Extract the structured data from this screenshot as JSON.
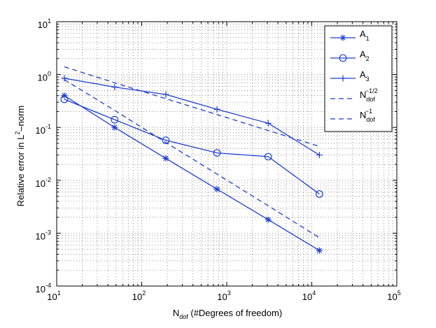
{
  "chart_data": {
    "type": "line",
    "xscale": "log",
    "yscale": "log",
    "xlim": [
      10,
      100000
    ],
    "ylim": [
      0.0001,
      10
    ],
    "grid": true,
    "legend_position": "top-right",
    "xlabel": {
      "main": "N",
      "sub": "dof",
      "rest": " (#Degrees of freedom)"
    },
    "ylabel": {
      "main": "Relative error in L",
      "sup": "2",
      "rest": "–norm"
    },
    "x_ticks": [
      {
        "base": "10",
        "exp": "1",
        "value": 10
      },
      {
        "base": "10",
        "exp": "2",
        "value": 100
      },
      {
        "base": "10",
        "exp": "3",
        "value": 1000
      },
      {
        "base": "10",
        "exp": "4",
        "value": 10000
      },
      {
        "base": "10",
        "exp": "5",
        "value": 100000
      }
    ],
    "y_ticks": [
      {
        "base": "10",
        "exp": "-4",
        "value": 0.0001
      },
      {
        "base": "10",
        "exp": "-3",
        "value": 0.001
      },
      {
        "base": "10",
        "exp": "-2",
        "value": 0.01
      },
      {
        "base": "10",
        "exp": "-1",
        "value": 0.1
      },
      {
        "base": "10",
        "exp": "0",
        "value": 1
      },
      {
        "base": "10",
        "exp": "1",
        "value": 10
      }
    ],
    "series": [
      {
        "name": "A_1",
        "label_main": "A",
        "label_sub": "1",
        "marker": "star",
        "style": "solid",
        "x": [
          12.3,
          48,
          192,
          768,
          3072,
          12288
        ],
        "y": [
          0.4,
          0.1,
          0.026,
          0.0068,
          0.0018,
          0.00047
        ]
      },
      {
        "name": "A_2",
        "label_main": "A",
        "label_sub": "2",
        "marker": "circle",
        "style": "solid",
        "x": [
          12.3,
          48,
          192,
          768,
          3072,
          12288
        ],
        "y": [
          0.34,
          0.14,
          0.057,
          0.033,
          0.028,
          0.0055
        ]
      },
      {
        "name": "A_3",
        "label_main": "A",
        "label_sub": "3",
        "marker": "plus",
        "style": "solid",
        "x": [
          12.3,
          48,
          192,
          768,
          3072,
          12288
        ],
        "y": [
          0.85,
          0.58,
          0.42,
          0.22,
          0.12,
          0.03
        ]
      },
      {
        "name": "N_dof^-1/2",
        "label_main": "N",
        "label_sub": "dof",
        "label_sup": "−1/2",
        "marker": "none",
        "style": "dashed",
        "x": [
          12.3,
          48,
          192,
          768,
          3072,
          12288
        ],
        "y": [
          1.4,
          0.7,
          0.35,
          0.175,
          0.0875,
          0.0437
        ]
      },
      {
        "name": "N_dof^-1",
        "label_main": "N",
        "label_sub": "dof",
        "label_sup": "−1",
        "marker": "none",
        "style": "dashed",
        "x": [
          12.3,
          48,
          192,
          768,
          3072,
          12288
        ],
        "y": [
          0.8,
          0.21,
          0.052,
          0.0131,
          0.0033,
          0.00082
        ]
      }
    ],
    "colors": {
      "line": "#1f3fd0",
      "axis": "#000000",
      "grid": "#555555",
      "background": "#ffffff"
    }
  }
}
